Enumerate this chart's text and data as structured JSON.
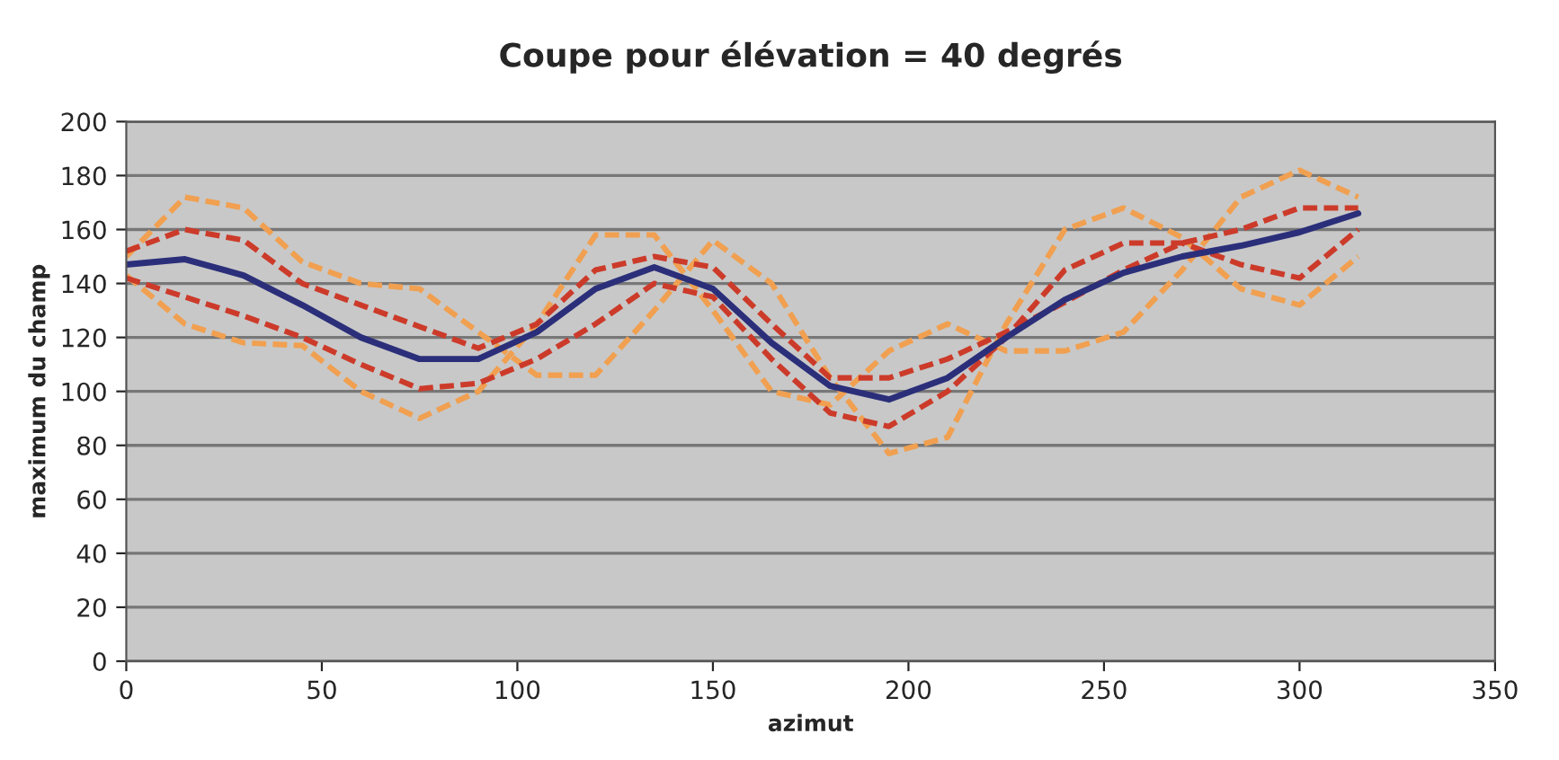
{
  "chart_data": {
    "type": "line",
    "title": "Coupe pour élévation = 40 degrés",
    "xlabel": "azimut",
    "ylabel": "maximum du champ",
    "x": [
      0,
      15,
      30,
      45,
      60,
      75,
      90,
      105,
      120,
      135,
      150,
      165,
      180,
      195,
      210,
      225,
      240,
      255,
      270,
      285,
      300,
      315
    ],
    "series": [
      {
        "color": "#f0a050",
        "line_style": "dashed",
        "values": [
          150,
          172,
          168,
          148,
          140,
          138,
          122,
          106,
          106,
          130,
          156,
          140,
          105,
          77,
          83,
          125,
          160,
          168,
          157,
          138,
          132,
          150
        ]
      },
      {
        "color": "#f0a050",
        "line_style": "dashed",
        "values": [
          143,
          125,
          118,
          117,
          100,
          90,
          100,
          125,
          158,
          158,
          130,
          100,
          95,
          115,
          125,
          115,
          115,
          122,
          145,
          172,
          182,
          172
        ]
      },
      {
        "color": "#cc3b2a",
        "line_style": "dashed",
        "values": [
          152,
          160,
          156,
          140,
          132,
          124,
          116,
          125,
          145,
          150,
          146,
          125,
          105,
          105,
          112,
          122,
          133,
          145,
          155,
          160,
          168,
          168
        ]
      },
      {
        "color": "#cc3b2a",
        "line_style": "dashed",
        "values": [
          142,
          135,
          128,
          120,
          110,
          101,
          103,
          112,
          125,
          140,
          135,
          112,
          92,
          87,
          100,
          120,
          145,
          155,
          155,
          147,
          142,
          160
        ]
      },
      {
        "color": "#2b2f7a",
        "line_style": "solid",
        "values": [
          147,
          149,
          143,
          132,
          120,
          112,
          112,
          122,
          138,
          146,
          138,
          118,
          102,
          97,
          105,
          120,
          134,
          144,
          150,
          154,
          159,
          166
        ]
      }
    ],
    "xlim": [
      0,
      350
    ],
    "xticks": [
      0,
      50,
      100,
      150,
      200,
      250,
      300,
      350
    ],
    "ylim": [
      0,
      200
    ],
    "yticks": [
      0,
      20,
      40,
      60,
      80,
      100,
      120,
      140,
      160,
      180,
      200
    ],
    "grid": "y",
    "marker": "none"
  }
}
